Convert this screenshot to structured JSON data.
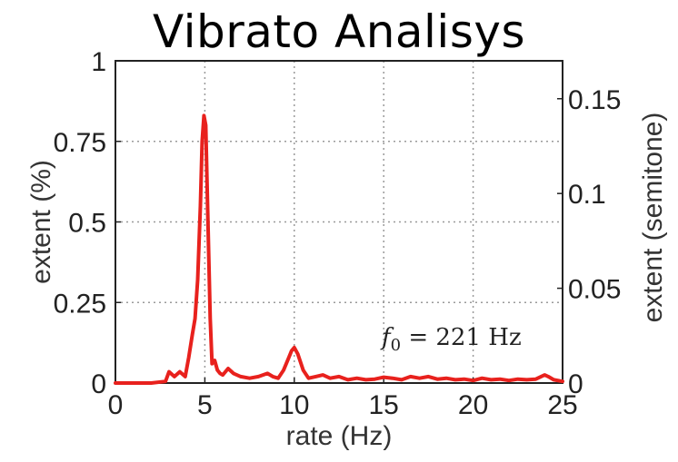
{
  "chart_data": {
    "type": "line",
    "title": "Vibrato Analisys",
    "xlabel": "rate (Hz)",
    "ylabel": "extent (%)",
    "y2label": "extent (semitone)",
    "xlim": [
      0,
      25
    ],
    "ylim": [
      0,
      1
    ],
    "y2lim": [
      0,
      0.17
    ],
    "xticks": [
      "0",
      "5",
      "10",
      "15",
      "20",
      "25"
    ],
    "yticks": [
      "0",
      "0.25",
      "0.5",
      "0.75",
      "1"
    ],
    "y2ticks": [
      "0",
      "0.05",
      "0.1",
      "0.15"
    ],
    "grid": true,
    "annotation": {
      "symbol": "f",
      "subscript": "0",
      "equals": " = 221 Hz"
    },
    "series": [
      {
        "color": "#e8211d",
        "x": [
          0,
          1,
          2,
          2.8,
          3.0,
          3.3,
          3.6,
          3.9,
          4.1,
          4.3,
          4.45,
          4.6,
          4.75,
          4.85,
          4.95,
          5.05,
          5.15,
          5.3,
          5.4,
          5.55,
          5.7,
          5.85,
          6.0,
          6.3,
          6.6,
          7.0,
          7.5,
          8.0,
          8.5,
          8.8,
          9.1,
          9.4,
          9.7,
          9.85,
          10.0,
          10.2,
          10.5,
          10.8,
          11.2,
          11.6,
          12.0,
          12.5,
          13.0,
          13.5,
          14.0,
          14.5,
          15.0,
          15.5,
          16.0,
          16.5,
          17.0,
          17.5,
          18.0,
          18.5,
          19.0,
          19.5,
          20.0,
          20.5,
          21.0,
          21.5,
          22.0,
          22.5,
          23.0,
          23.5,
          24.0,
          24.2,
          24.5,
          25.0
        ],
        "y": [
          0,
          0,
          0,
          0.005,
          0.035,
          0.02,
          0.035,
          0.02,
          0.08,
          0.15,
          0.2,
          0.32,
          0.55,
          0.75,
          0.83,
          0.8,
          0.55,
          0.2,
          0.06,
          0.07,
          0.04,
          0.03,
          0.025,
          0.045,
          0.03,
          0.02,
          0.015,
          0.02,
          0.03,
          0.02,
          0.015,
          0.04,
          0.08,
          0.1,
          0.11,
          0.09,
          0.04,
          0.015,
          0.02,
          0.025,
          0.015,
          0.02,
          0.01,
          0.015,
          0.01,
          0.012,
          0.018,
          0.015,
          0.01,
          0.02,
          0.015,
          0.02,
          0.012,
          0.015,
          0.01,
          0.012,
          0.008,
          0.015,
          0.01,
          0.012,
          0.008,
          0.012,
          0.01,
          0.012,
          0.025,
          0.02,
          0.01,
          0.005
        ]
      }
    ]
  }
}
